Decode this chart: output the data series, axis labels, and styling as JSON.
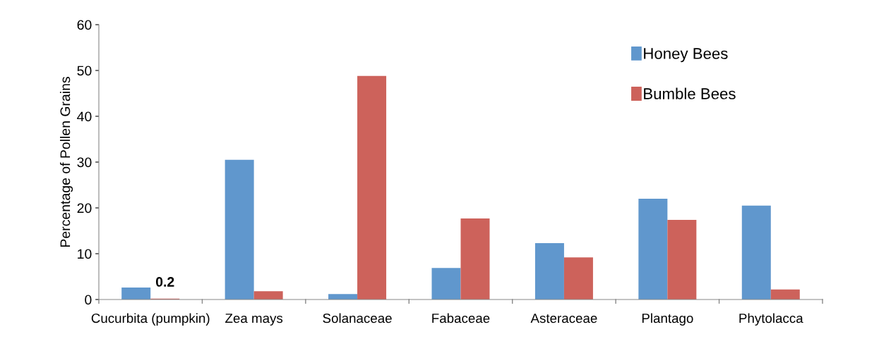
{
  "chart_data": {
    "type": "bar",
    "ylabel": "Percentage of Pollen Grains",
    "categories": [
      "Cucurbita (pumpkin)",
      "Zea mays",
      "Solanaceae",
      "Fabaceae",
      "Asteraceae",
      "Plantago",
      "Phytolacca"
    ],
    "series": [
      {
        "name": "Honey Bees",
        "color": "#6097cd",
        "values": [
          2.6,
          30.5,
          1.2,
          6.9,
          12.3,
          22.0,
          20.5
        ]
      },
      {
        "name": "Bumble Bees",
        "color": "#cd625b",
        "values": [
          0.2,
          1.8,
          48.8,
          17.7,
          9.2,
          17.4,
          2.2
        ],
        "value_labels": [
          "0.2",
          null,
          null,
          null,
          null,
          null,
          null
        ]
      }
    ],
    "ylim": [
      0,
      60
    ],
    "yticks": [
      0,
      10,
      20,
      30,
      40,
      50,
      60
    ],
    "grid": false,
    "legend": "top right"
  }
}
